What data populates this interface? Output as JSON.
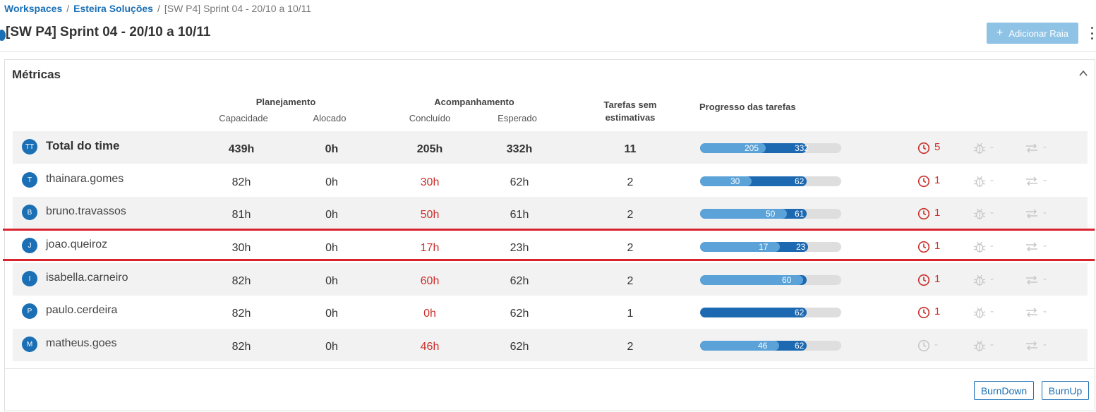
{
  "breadcrumb": {
    "workspaces": "Workspaces",
    "sep1": "/",
    "board": "Esteira Soluções",
    "sep2": "/",
    "current": "[SW P4] Sprint 04 - 20/10 a 10/11"
  },
  "page": {
    "title": "[SW P4] Sprint 04 - 20/10 a 10/11",
    "add_lane_label": "Adicionar Raia"
  },
  "metrics": {
    "title": "Métricas",
    "headers": {
      "planning": "Planejamento",
      "capacity": "Capacidade",
      "allocated": "Alocado",
      "tracking": "Acompanhamento",
      "done": "Concluído",
      "expected": "Esperado",
      "no_estimate_line1": "Tarefas sem",
      "no_estimate_line2": "estimativas",
      "progress": "Progresso das tarefas"
    },
    "rows": [
      {
        "initials": "TT",
        "name": "Total do time",
        "capacity": "439h",
        "allocated": "0h",
        "done": "205h",
        "expected": "332h",
        "no_estimate": "11",
        "done_val": 205,
        "expected_val": 332,
        "max_val": 439,
        "done_label": "205",
        "expected_label": "332",
        "late": "5",
        "bugs": "-",
        "rework": "-"
      },
      {
        "initials": "T",
        "name": "thainara.gomes",
        "capacity": "82h",
        "allocated": "0h",
        "done": "30h",
        "expected": "62h",
        "no_estimate": "2",
        "done_val": 30,
        "expected_val": 62,
        "max_val": 82,
        "done_label": "30",
        "expected_label": "62",
        "late": "1",
        "bugs": "-",
        "rework": "-"
      },
      {
        "initials": "B",
        "name": "bruno.travassos",
        "capacity": "81h",
        "allocated": "0h",
        "done": "50h",
        "expected": "61h",
        "no_estimate": "2",
        "done_val": 50,
        "expected_val": 61,
        "max_val": 81,
        "done_label": "50",
        "expected_label": "61",
        "late": "1",
        "bugs": "-",
        "rework": "-"
      },
      {
        "initials": "J",
        "name": "joao.queiroz",
        "capacity": "30h",
        "allocated": "0h",
        "done": "17h",
        "expected": "23h",
        "no_estimate": "2",
        "done_val": 17,
        "expected_val": 23,
        "max_val": 30,
        "done_label": "17",
        "expected_label": "23",
        "late": "1",
        "bugs": "-",
        "rework": "-"
      },
      {
        "initials": "I",
        "name": "isabella.carneiro",
        "capacity": "82h",
        "allocated": "0h",
        "done": "60h",
        "expected": "62h",
        "no_estimate": "2",
        "done_val": 60,
        "expected_val": 62,
        "max_val": 82,
        "done_label": "60",
        "expected_label": "",
        "late": "1",
        "bugs": "-",
        "rework": "-"
      },
      {
        "initials": "P",
        "name": "paulo.cerdeira",
        "capacity": "82h",
        "allocated": "0h",
        "done": "0h",
        "expected": "62h",
        "no_estimate": "1",
        "done_val": 0,
        "expected_val": 62,
        "max_val": 82,
        "done_label": "",
        "expected_label": "62",
        "late": "1",
        "bugs": "-",
        "rework": "-"
      },
      {
        "initials": "M",
        "name": "matheus.goes",
        "capacity": "82h",
        "allocated": "0h",
        "done": "46h",
        "expected": "62h",
        "no_estimate": "2",
        "done_val": 46,
        "expected_val": 62,
        "max_val": 82,
        "done_label": "46",
        "expected_label": "62",
        "late": "-",
        "bugs": "-",
        "rework": "-"
      }
    ],
    "burndown_label": "BurnDown",
    "burnup_label": "BurnUp"
  },
  "colors": {
    "accent": "#1a6fb5",
    "done_bar": "#5aa2d8",
    "expected_bar": "#1c69b2",
    "late": "#c9302c",
    "highlight": "#d9232e"
  }
}
